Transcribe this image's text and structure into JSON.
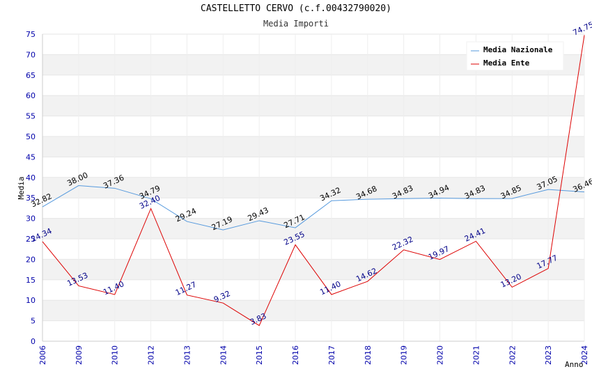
{
  "chart_data": {
    "type": "line",
    "title": "CASTELLETTO CERVO (c.f.00432790020)",
    "subtitle": "Media Importi",
    "xlabel": "Anno",
    "ylabel": "Media",
    "categories": [
      "2006",
      "2009",
      "2010",
      "2012",
      "2013",
      "2014",
      "2015",
      "2016",
      "2017",
      "2018",
      "2019",
      "2020",
      "2021",
      "2022",
      "2023",
      "2024"
    ],
    "ylim": [
      0,
      75
    ],
    "yticks": [
      0,
      5,
      10,
      15,
      20,
      25,
      30,
      35,
      40,
      45,
      50,
      55,
      60,
      65,
      70,
      75
    ],
    "grid": "horizontal alternating bands",
    "legend_position": "top-right",
    "series": [
      {
        "name": "Media Nazionale",
        "color": "#5599dd",
        "values": [
          32.82,
          38.0,
          37.36,
          34.79,
          29.24,
          27.19,
          29.43,
          27.71,
          34.32,
          34.68,
          34.83,
          34.94,
          34.83,
          34.85,
          37.05,
          36.46
        ],
        "labels": [
          "32.82",
          "38.00",
          "37.36",
          "34.79",
          "29.24",
          "27.19",
          "29.43",
          "27.71",
          "34.32",
          "34.68",
          "34.83",
          "34.94",
          "34.83",
          "34.85",
          "37.05",
          "36.46"
        ]
      },
      {
        "name": "Media Ente",
        "color": "#dd0000",
        "values": [
          24.34,
          13.53,
          11.4,
          32.4,
          11.27,
          9.32,
          3.83,
          23.55,
          11.4,
          14.62,
          22.32,
          19.97,
          24.41,
          13.2,
          17.77,
          74.75
        ],
        "labels": [
          "24.34",
          "13.53",
          "11.40",
          "32.40",
          "11.27",
          "9.32",
          "3.83",
          "23.55",
          "11.40",
          "14.62",
          "22.32",
          "19.97",
          "24.41",
          "13.20",
          "17.77",
          "74.75"
        ]
      }
    ]
  }
}
